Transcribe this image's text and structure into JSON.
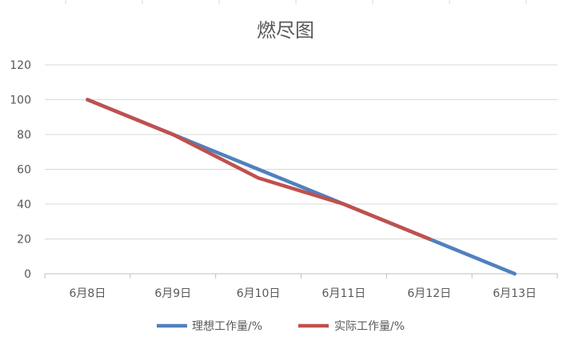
{
  "chart_data": {
    "type": "line",
    "title": "燃尽图",
    "xlabel": "",
    "ylabel": "",
    "categories": [
      "6月8日",
      "6月9日",
      "6月10日",
      "6月11日",
      "6月12日",
      "6月13日"
    ],
    "ylim": [
      0,
      120
    ],
    "yticks": [
      0,
      20,
      40,
      60,
      80,
      100,
      120
    ],
    "grid": true,
    "legend_position": "bottom",
    "series": [
      {
        "name": "理想工作量/%",
        "color": "#4f81bd",
        "values": [
          100,
          80,
          60,
          40,
          20,
          0
        ]
      },
      {
        "name": "实际工作量/%",
        "color": "#c0504d",
        "values": [
          100,
          80,
          55,
          40,
          20,
          null
        ]
      }
    ]
  }
}
